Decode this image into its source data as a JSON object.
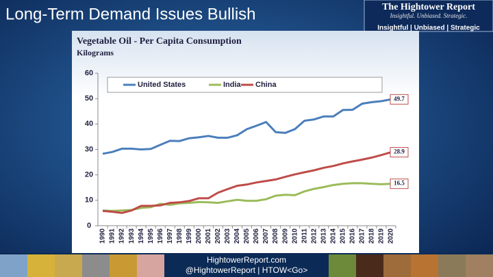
{
  "slide": {
    "title": "Long-Term Demand Issues Bullish",
    "logo": {
      "name": "The Hightower Report",
      "tagline": "Insightful. Unbiased. Strategic.",
      "bar": "Insightful | Unbiased | Strategic"
    },
    "footer": {
      "site": "HightowerReport.com",
      "handle": "@HightowerReport | HTOW<Go>"
    }
  },
  "chart_data": {
    "type": "line",
    "title": "Vegetable Oil - Per Capita Consumption",
    "subtitle": "Kilograms",
    "categories": [
      "1990",
      "1991",
      "1992",
      "1993",
      "1994",
      "1995",
      "1996",
      "1997",
      "1998",
      "1999",
      "2000",
      "2001",
      "2002",
      "2003",
      "2004",
      "2005",
      "2006",
      "2007",
      "2008",
      "2009",
      "2010",
      "2011",
      "2012",
      "2013",
      "2014",
      "2015",
      "2016",
      "2017",
      "2018",
      "2019",
      "2020"
    ],
    "series": [
      {
        "name": "United States",
        "color": "#4a7ebb",
        "values": [
          28.3,
          29,
          30.3,
          30.3,
          30,
          30.2,
          31.8,
          33.4,
          33.3,
          34.4,
          34.8,
          35.3,
          34.6,
          34.6,
          35.6,
          38,
          39.3,
          40.8,
          36.8,
          36.5,
          38,
          41.3,
          41.8,
          43,
          43,
          45.5,
          45.6,
          48,
          48.6,
          49,
          49.7
        ]
      },
      {
        "name": "India",
        "color": "#9bbb59",
        "values": [
          6,
          5.8,
          6,
          6.2,
          7,
          7.3,
          8.6,
          8.2,
          8.8,
          9,
          9.3,
          9.2,
          9,
          9.6,
          10.2,
          9.8,
          9.8,
          10.4,
          11.8,
          12.2,
          12,
          13.5,
          14.5,
          15.2,
          16,
          16.5,
          16.7,
          16.7,
          16.5,
          16.3,
          16.5
        ]
      },
      {
        "name": "China",
        "color": "#be4b48",
        "values": [
          5.8,
          5.5,
          5,
          6,
          7.8,
          7.8,
          8,
          9,
          9.2,
          9.7,
          10.8,
          10.8,
          13,
          14.4,
          15.7,
          16.2,
          17,
          17.6,
          18.2,
          19.2,
          20.2,
          21,
          21.8,
          22.8,
          23.5,
          24.5,
          25.3,
          26,
          26.8,
          27.8,
          28.9
        ]
      }
    ],
    "ylim": [
      0,
      60
    ],
    "yticks": [
      0,
      10,
      20,
      30,
      40,
      50,
      60
    ],
    "grid": false,
    "legend": "top"
  }
}
